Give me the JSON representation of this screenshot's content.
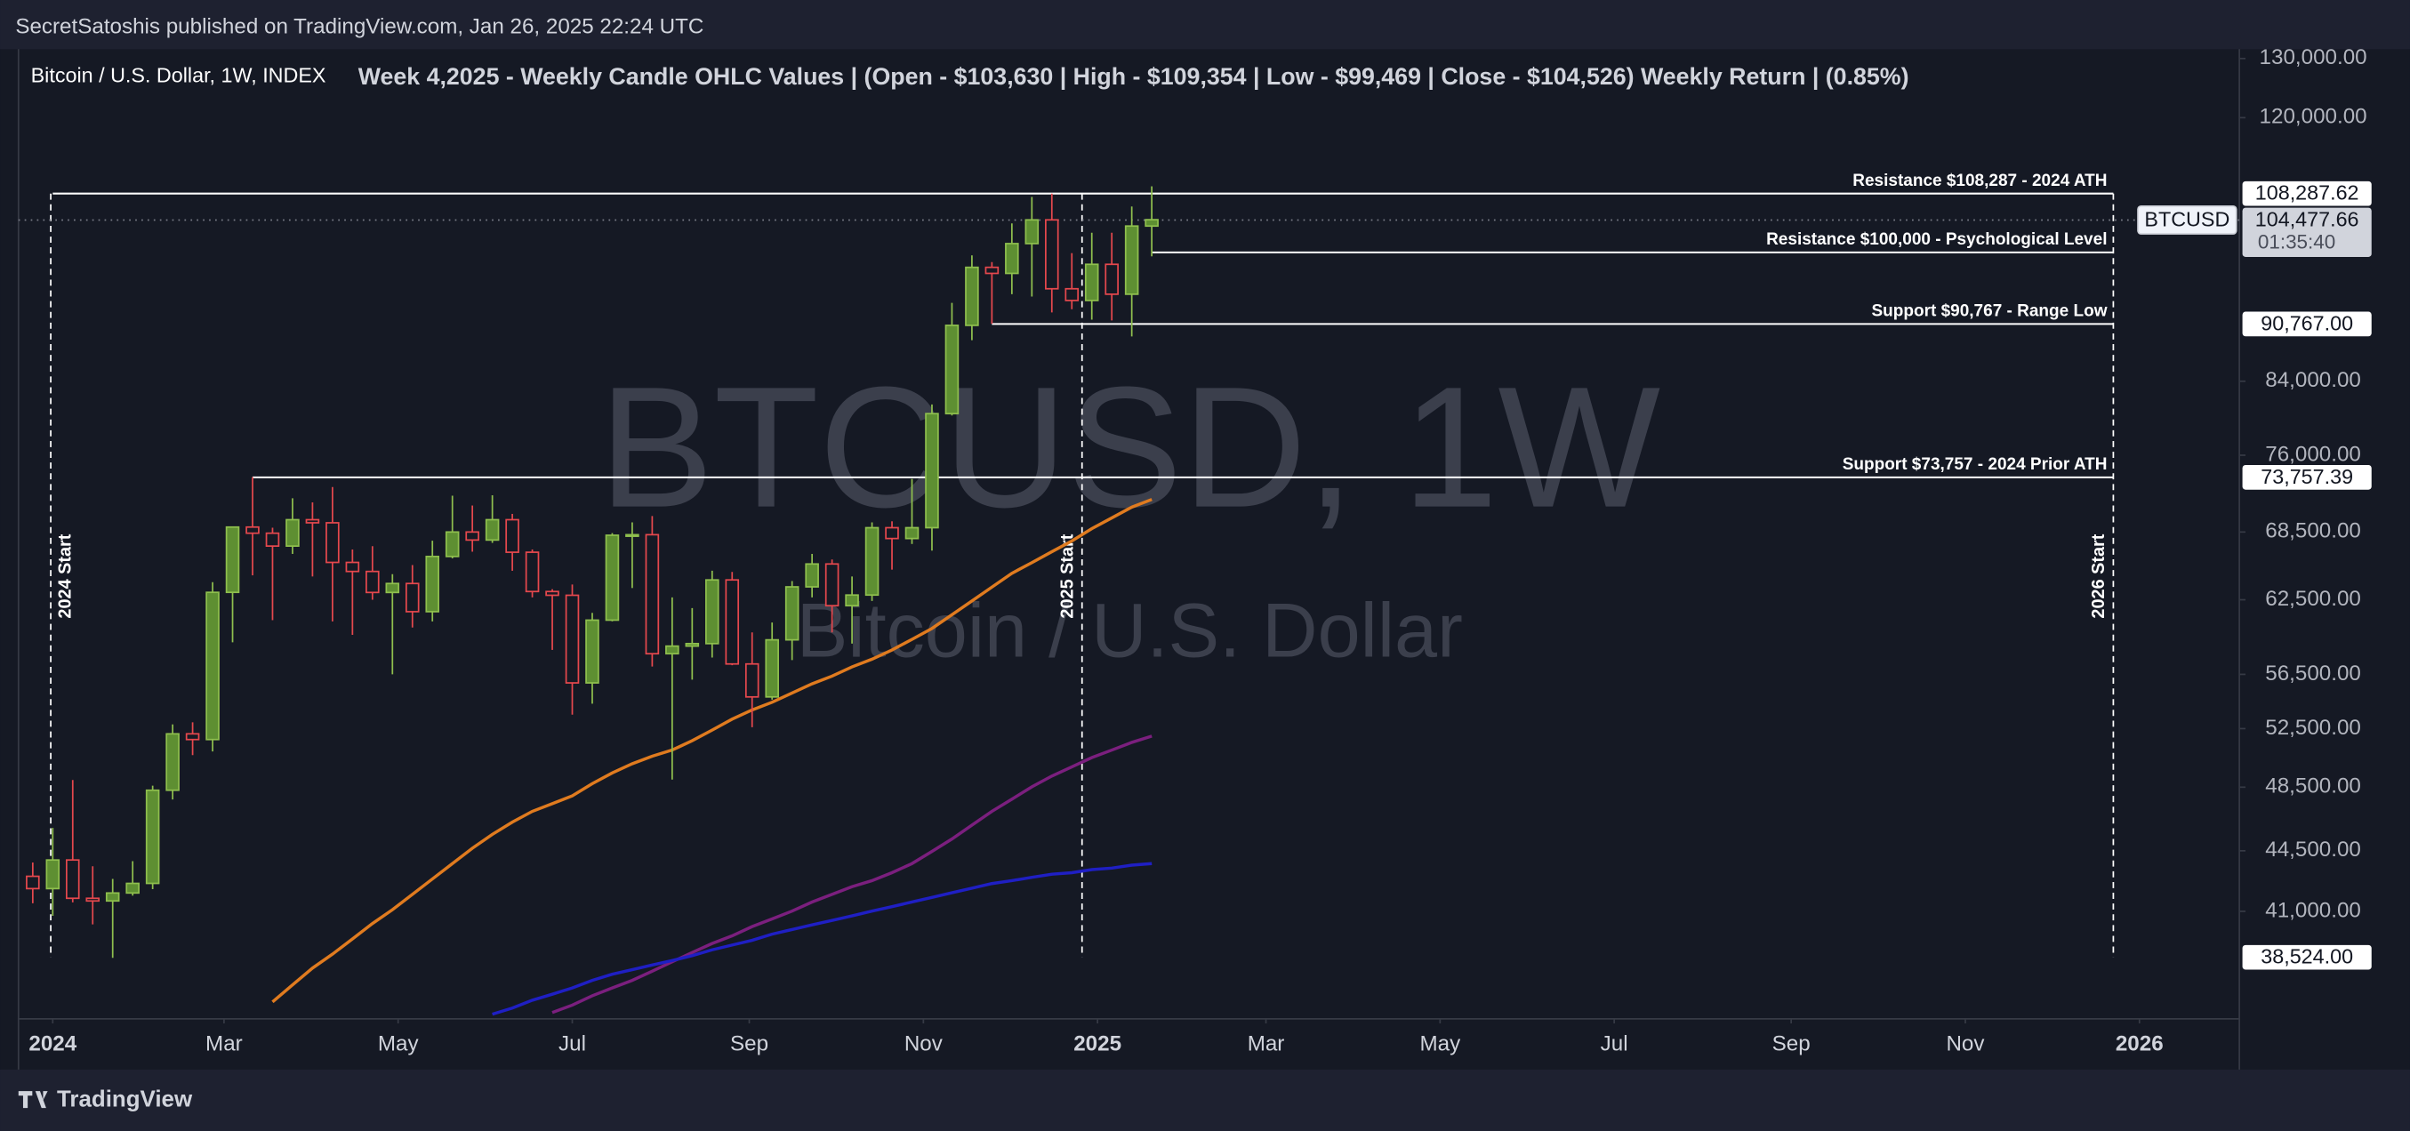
{
  "header": "SecretSatoshis published on TradingView.com, Jan 26, 2025 22:24 UTC",
  "footer": "TradingView",
  "chart_data": {
    "type": "candlestick",
    "symbol": "Bitcoin / U.S. Dollar, 1W, INDEX",
    "title": "Week 4,2025 - Weekly Candle OHLC Values | (Open - $103,630 | High - $109,354 | Low - $99,469 | Close - $104,526) Weekly Return | (0.85%)",
    "watermark": "BTCUSD, 1W",
    "watermark_sub": "Bitcoin / U.S. Dollar",
    "log_scale": true,
    "grid": false,
    "up_color": "#5e8f32",
    "down_color": "#e5484d",
    "x": [
      "2023-12-25",
      "2024-01-01",
      "2024-01-08",
      "2024-01-15",
      "2024-01-22",
      "2024-01-29",
      "2024-02-05",
      "2024-02-12",
      "2024-02-19",
      "2024-02-26",
      "2024-03-04",
      "2024-03-11",
      "2024-03-18",
      "2024-03-25",
      "2024-04-01",
      "2024-04-08",
      "2024-04-15",
      "2024-04-22",
      "2024-04-29",
      "2024-05-06",
      "2024-05-13",
      "2024-05-20",
      "2024-05-27",
      "2024-06-03",
      "2024-06-10",
      "2024-06-17",
      "2024-06-24",
      "2024-07-01",
      "2024-07-08",
      "2024-07-15",
      "2024-07-22",
      "2024-07-29",
      "2024-08-05",
      "2024-08-12",
      "2024-08-19",
      "2024-08-26",
      "2024-09-02",
      "2024-09-09",
      "2024-09-16",
      "2024-09-23",
      "2024-09-30",
      "2024-10-07",
      "2024-10-14",
      "2024-10-21",
      "2024-10-28",
      "2024-11-04",
      "2024-11-11",
      "2024-11-18",
      "2024-11-25",
      "2024-12-02",
      "2024-12-09",
      "2024-12-16",
      "2024-12-23",
      "2024-12-30",
      "2025-01-06",
      "2025-01-13",
      "2025-01-20"
    ],
    "open": [
      42990,
      42280,
      43950,
      41730,
      41580,
      42030,
      42580,
      48300,
      52130,
      51730,
      63130,
      68960,
      68390,
      67210,
      69650,
      69360,
      65740,
      64940,
      63120,
      63890,
      61500,
      66270,
      68500,
      67760,
      69650,
      66650,
      63200,
      62880,
      55850,
      60800,
      68200,
      68250,
      58100,
      58700,
      58900,
      64200,
      57300,
      54800,
      59200,
      63600,
      65600,
      62000,
      62900,
      68900,
      67900,
      68900,
      80400,
      90600,
      98000,
      97200,
      101200,
      104500,
      95200,
      93700,
      98400,
      94500,
      103630
    ],
    "high": [
      43800,
      45900,
      48970,
      43580,
      42840,
      43880,
      48600,
      52800,
      52950,
      64000,
      69000,
      73780,
      68900,
      71700,
      71300,
      72800,
      66900,
      67200,
      64700,
      65500,
      67700,
      71950,
      71000,
      71990,
      70200,
      66900,
      63400,
      63800,
      61400,
      68400,
      69400,
      70000,
      62700,
      61800,
      65000,
      64900,
      59800,
      60600,
      64100,
      66500,
      66000,
      64500,
      69400,
      69500,
      73600,
      81400,
      93400,
      99600,
      98700,
      104000,
      107800,
      108287,
      99900,
      102700,
      102700,
      106400,
      109354
    ],
    "low": [
      41450,
      40750,
      41500,
      40280,
      38500,
      41880,
      42250,
      47700,
      50650,
      50900,
      59000,
      64600,
      60800,
      66500,
      64500,
      60700,
      59600,
      62500,
      56500,
      60200,
      60700,
      66100,
      66700,
      67500,
      65000,
      62700,
      58400,
      53500,
      54300,
      60700,
      63500,
      57100,
      49000,
      56100,
      57800,
      57200,
      52600,
      54600,
      57600,
      62700,
      59800,
      58900,
      62400,
      65100,
      67400,
      66800,
      80200,
      88800,
      90800,
      94500,
      94200,
      92200,
      92600,
      91300,
      91200,
      89250,
      99469
    ],
    "close": [
      42280,
      43950,
      41730,
      41580,
      42030,
      42580,
      48300,
      52130,
      51730,
      63130,
      68960,
      68390,
      67210,
      69650,
      69360,
      65740,
      64940,
      63120,
      63890,
      61500,
      66270,
      68500,
      67760,
      69650,
      66650,
      63200,
      62880,
      55850,
      60800,
      68200,
      68250,
      58100,
      58700,
      58900,
      64200,
      57300,
      54800,
      59200,
      63600,
      65600,
      62000,
      62900,
      68900,
      67900,
      68900,
      80400,
      90600,
      98000,
      97200,
      101200,
      104500,
      95200,
      93700,
      98400,
      94500,
      103630,
      104526
    ],
    "lines": [
      {
        "color": "#e07b1f",
        "values": [
          null,
          null,
          null,
          null,
          null,
          null,
          null,
          null,
          null,
          null,
          null,
          null,
          36270,
          37120,
          37970,
          38690,
          39500,
          40330,
          41090,
          41950,
          42830,
          43730,
          44650,
          45500,
          46260,
          46940,
          47430,
          47930,
          48730,
          49440,
          50060,
          50580,
          51000,
          51650,
          52400,
          53170,
          53840,
          54410,
          55090,
          55780,
          56360,
          57070,
          57670,
          58390,
          59240,
          60110,
          61240,
          62400,
          63580,
          64780,
          65730,
          66700,
          67680,
          68810,
          69820,
          70850,
          71590
        ]
      },
      {
        "color": "#7b1f7e",
        "values": [
          null,
          null,
          null,
          null,
          null,
          null,
          null,
          null,
          null,
          null,
          null,
          null,
          null,
          null,
          null,
          null,
          null,
          null,
          null,
          null,
          null,
          null,
          null,
          null,
          null,
          null,
          35750,
          36110,
          36570,
          36960,
          37340,
          37810,
          38290,
          38770,
          39250,
          39660,
          40160,
          40580,
          41010,
          41520,
          41950,
          42390,
          42740,
          43200,
          43730,
          44460,
          45210,
          46070,
          46940,
          47720,
          48530,
          49240,
          49860,
          50480,
          51000,
          51530,
          51970
        ]
      },
      {
        "color": "#1f1fc4",
        "values": [
          null,
          null,
          null,
          null,
          null,
          null,
          null,
          null,
          null,
          null,
          null,
          null,
          null,
          null,
          null,
          null,
          null,
          null,
          null,
          null,
          null,
          null,
          null,
          35670,
          35970,
          36350,
          36650,
          36960,
          37340,
          37650,
          37890,
          38130,
          38360,
          38610,
          38920,
          39170,
          39420,
          39750,
          40000,
          40250,
          40500,
          40750,
          41010,
          41260,
          41520,
          41780,
          42040,
          42300,
          42570,
          42740,
          42930,
          43110,
          43200,
          43380,
          43470,
          43640,
          43730
        ]
      }
    ],
    "levels": [
      {
        "value": 108287.62,
        "tag": "108,287.62",
        "text": "Resistance $108,287 - 2024 ATH"
      },
      {
        "value": 100000,
        "text": "Resistance $100,000 - Psychological Level"
      },
      {
        "value": 90767,
        "tag": "90,767.00",
        "text": "Support $90,767 - Range Low"
      },
      {
        "value": 73757.39,
        "tag": "73,757.39",
        "text": "Support $73,757 - 2024 Prior ATH"
      }
    ],
    "current": {
      "value": 104477.66,
      "label": "104,477.66",
      "symbol": "BTCUSD",
      "countdown": "01:35:40"
    },
    "range_tag": {
      "value": 38524,
      "label": "38,524.00"
    },
    "annotations": [
      "2024 Start",
      "2025 Start",
      "2026 Start"
    ],
    "xlim": [
      "2023-12-20",
      "2026-02-05"
    ],
    "xticks": [
      {
        "value": "2024-01-01",
        "label": "2024"
      },
      {
        "value": "2024-03-01",
        "label": "Mar"
      },
      {
        "value": "2024-05-01",
        "label": "May"
      },
      {
        "value": "2024-07-01",
        "label": "Jul"
      },
      {
        "value": "2024-09-01",
        "label": "Sep"
      },
      {
        "value": "2024-11-01",
        "label": "Nov"
      },
      {
        "value": "2025-01-01",
        "label": "2025"
      },
      {
        "value": "2025-03-01",
        "label": "Mar"
      },
      {
        "value": "2025-05-01",
        "label": "May"
      },
      {
        "value": "2025-07-01",
        "label": "Jul"
      },
      {
        "value": "2025-09-01",
        "label": "Sep"
      },
      {
        "value": "2025-11-01",
        "label": "Nov"
      },
      {
        "value": "2026-01-01",
        "label": "2026"
      }
    ],
    "ylim": [
      35450,
      132200
    ],
    "yticks": [
      {
        "value": 130000,
        "label": "130,000.00"
      },
      {
        "value": 120000,
        "label": "120,000.00"
      },
      {
        "value": 84000,
        "label": "84,000.00"
      },
      {
        "value": 76000,
        "label": "76,000.00"
      },
      {
        "value": 68500,
        "label": "68,500.00"
      },
      {
        "value": 62500,
        "label": "62,500.00"
      },
      {
        "value": 56500,
        "label": "56,500.00"
      },
      {
        "value": 52500,
        "label": "52,500.00"
      },
      {
        "value": 48500,
        "label": "48,500.00"
      },
      {
        "value": 44500,
        "label": "44,500.00"
      },
      {
        "value": 41000,
        "label": "41,000.00"
      }
    ]
  }
}
